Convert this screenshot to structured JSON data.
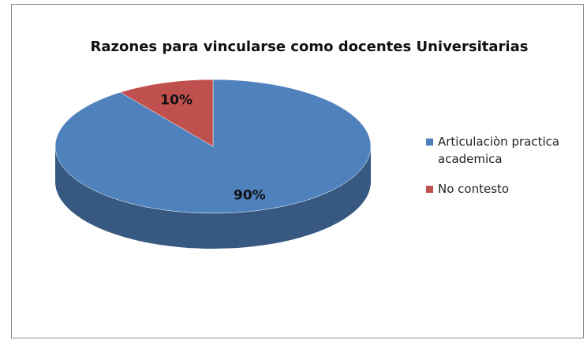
{
  "chart_data": {
    "type": "pie",
    "title": "Razones para vincularse como docentes Universitarias",
    "categories": [
      "Articulaciòn practica academica",
      "No contesto"
    ],
    "values": [
      90,
      10
    ],
    "value_labels": [
      "90%",
      "10%"
    ],
    "colors": [
      "#4f81bd",
      "#c0504d"
    ],
    "legend": "right"
  }
}
